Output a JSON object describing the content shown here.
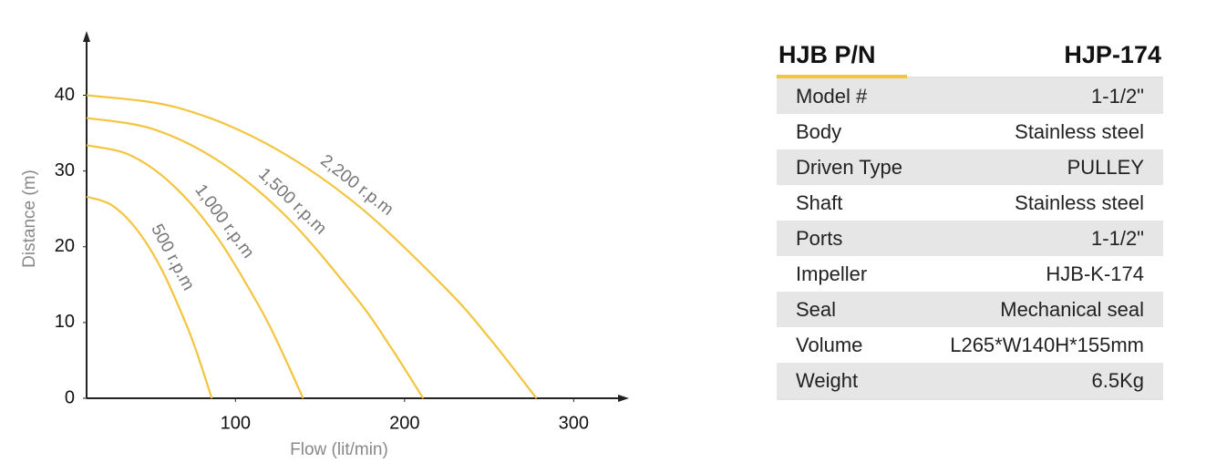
{
  "chart_data": {
    "type": "line",
    "x_label": "Flow (lit/min)",
    "y_label": "Distance (m)",
    "xlim": [
      12,
      330
    ],
    "ylim": [
      0,
      48
    ],
    "xticks": [
      100,
      200,
      300
    ],
    "yticks": [
      0,
      10,
      20,
      30,
      40
    ],
    "series": [
      {
        "name": "500 r.p.m",
        "color": "#f3c53f",
        "x": [
          12,
          26.8,
          41.6,
          56.4,
          71.2,
          78.6,
          86
        ],
        "values": [
          26.6,
          25.5,
          22.3,
          17.0,
          9.6,
          5.1,
          0
        ]
      },
      {
        "name": "1,000 r.p.m",
        "color": "#f3c53f",
        "x": [
          12,
          37.6,
          63.2,
          88.8,
          114.4,
          127.2,
          140
        ],
        "values": [
          33.4,
          32.1,
          28.1,
          21.4,
          12.0,
          6.3,
          0
        ]
      },
      {
        "name": "1,500 r.p.m",
        "color": "#f3c53f",
        "x": [
          12,
          51.8,
          91.6,
          131.4,
          171.2,
          191.1,
          211
        ],
        "values": [
          37,
          35.5,
          31.1,
          23.7,
          13.3,
          7.0,
          0
        ]
      },
      {
        "name": "2,200 r.p.m",
        "color": "#f3c53f",
        "x": [
          12,
          65.2,
          118.4,
          171.6,
          224.8,
          251.4,
          278
        ],
        "values": [
          40,
          38.4,
          33.6,
          25.6,
          14.4,
          7.6,
          0
        ]
      }
    ]
  },
  "table": {
    "header": [
      "HJB P/N",
      "HJP-174"
    ],
    "rows": [
      [
        "Model #",
        "1-1/2\""
      ],
      [
        "Body",
        "Stainless steel"
      ],
      [
        "Driven Type",
        "PULLEY"
      ],
      [
        "Shaft",
        "Stainless steel"
      ],
      [
        "Ports",
        "1-1/2\""
      ],
      [
        "Impeller",
        "HJB-K-174"
      ],
      [
        "Seal",
        "Mechanical seal"
      ],
      [
        "Volume",
        "L265*W140H*155mm"
      ],
      [
        "Weight",
        "6.5Kg"
      ]
    ]
  }
}
